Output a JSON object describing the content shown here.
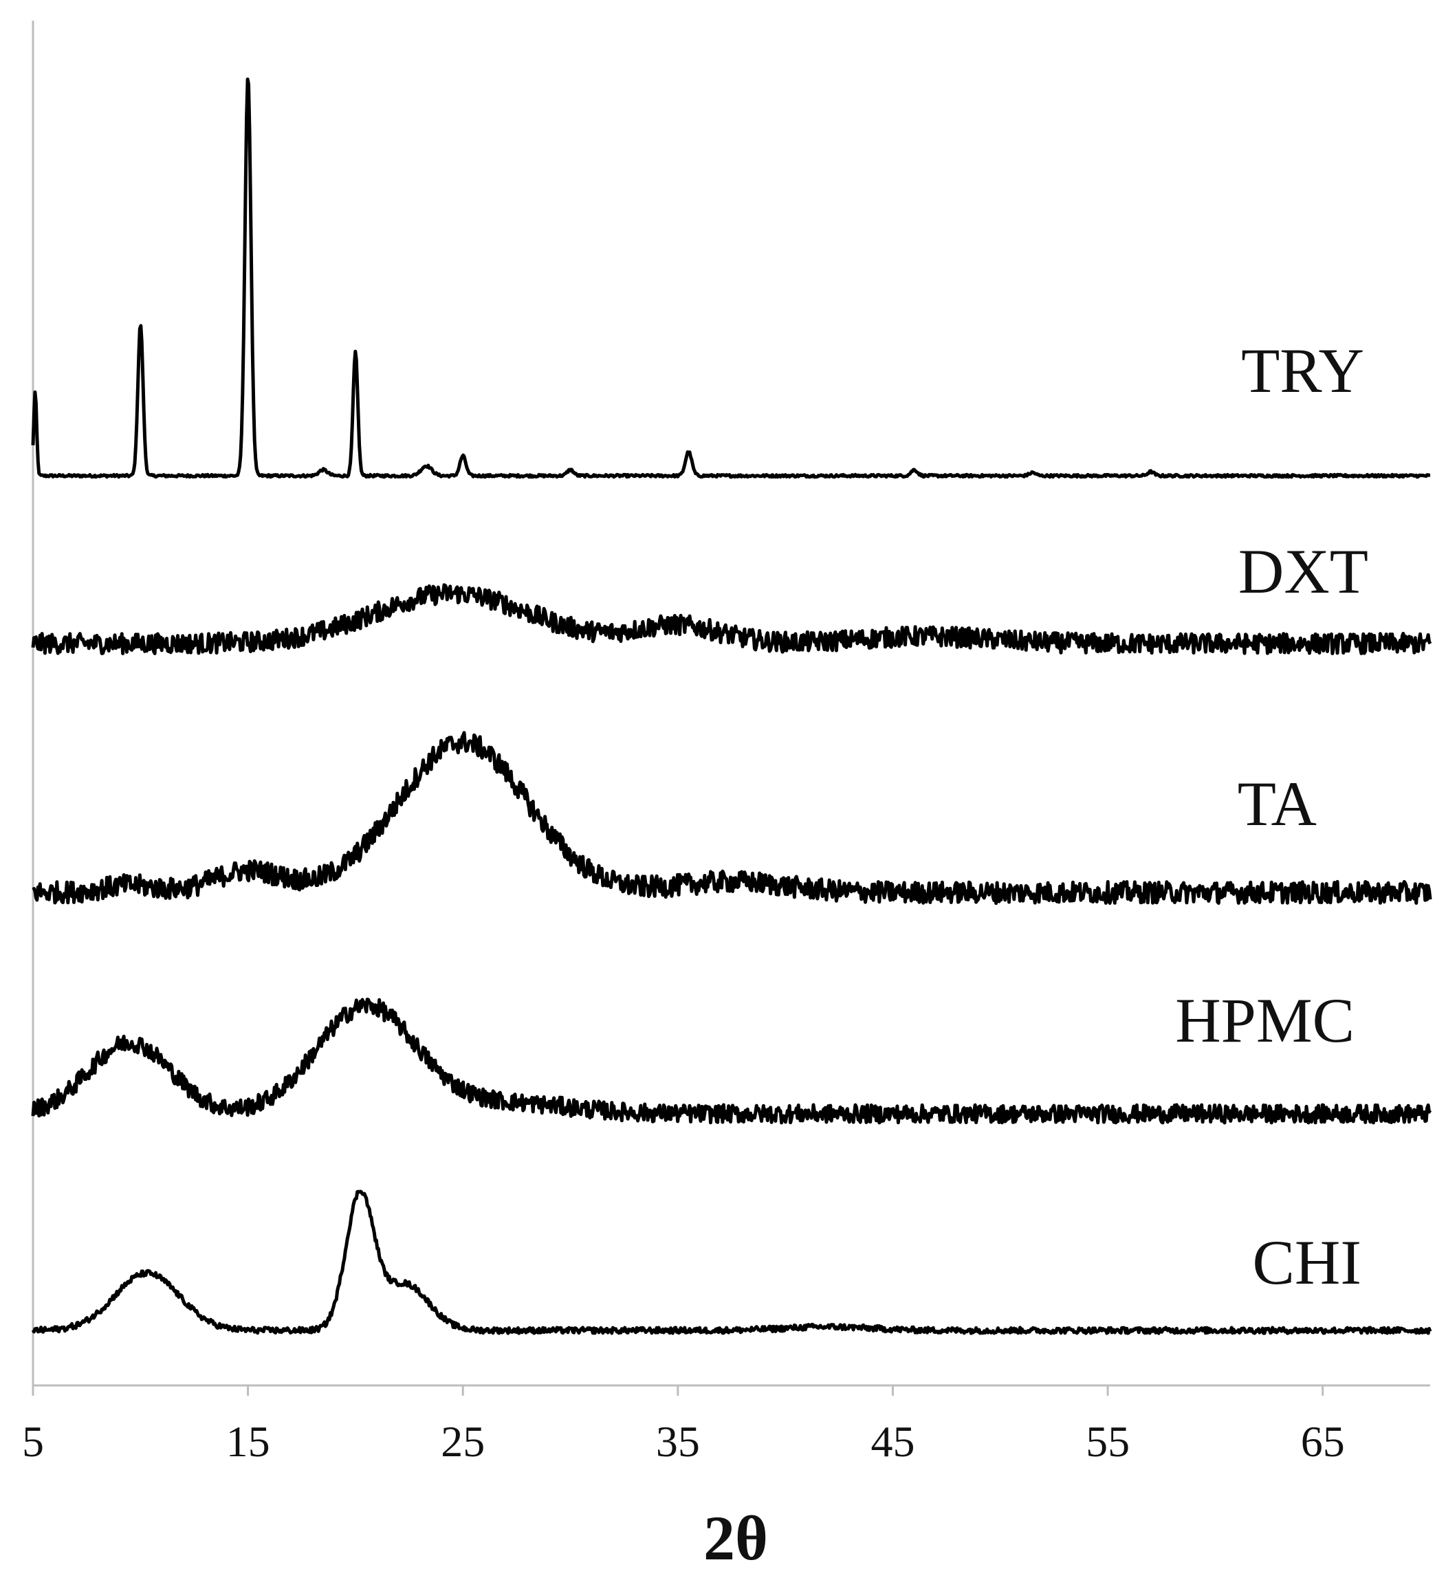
{
  "chart_data": {
    "type": "line",
    "title": "",
    "xlabel": "2θ",
    "ylabel": "",
    "xlim": [
      5,
      70
    ],
    "xticks": [
      5,
      15,
      25,
      35,
      45,
      55,
      65
    ],
    "y_axis_ticks": false,
    "grid": false,
    "layout": "stacked offset traces, labels at right end of each trace",
    "series": [
      {
        "name": "TRY",
        "noise": 0.003,
        "baseline": 0.0,
        "peaks": [
          {
            "x": 5.1,
            "h": 0.21,
            "w": 0.07
          },
          {
            "x": 10.0,
            "h": 0.38,
            "w": 0.12
          },
          {
            "x": 15.0,
            "h": 1.0,
            "w": 0.14
          },
          {
            "x": 20.0,
            "h": 0.31,
            "w": 0.11
          },
          {
            "x": 18.5,
            "h": 0.015,
            "w": 0.2
          },
          {
            "x": 23.3,
            "h": 0.025,
            "w": 0.25
          },
          {
            "x": 25.0,
            "h": 0.05,
            "w": 0.14
          },
          {
            "x": 30.0,
            "h": 0.015,
            "w": 0.15
          },
          {
            "x": 35.5,
            "h": 0.06,
            "w": 0.15
          },
          {
            "x": 46.0,
            "h": 0.015,
            "w": 0.15
          },
          {
            "x": 51.5,
            "h": 0.008,
            "w": 0.15
          },
          {
            "x": 57.0,
            "h": 0.01,
            "w": 0.15
          }
        ]
      },
      {
        "name": "DXT",
        "noise": 0.028,
        "baseline": 0.0,
        "peaks": [
          {
            "x": 24.5,
            "h": 0.14,
            "w": 3.6
          },
          {
            "x": 35.0,
            "h": 0.05,
            "w": 2.0
          },
          {
            "x": 46.5,
            "h": 0.02,
            "w": 3.0
          }
        ]
      },
      {
        "name": "TA",
        "noise": 0.03,
        "baseline": 0.0,
        "peaks": [
          {
            "x": 9.5,
            "h": 0.02,
            "w": 1.2
          },
          {
            "x": 15.0,
            "h": 0.06,
            "w": 1.6
          },
          {
            "x": 25.0,
            "h": 0.42,
            "w": 3.0
          },
          {
            "x": 37.5,
            "h": 0.03,
            "w": 2.5
          }
        ]
      },
      {
        "name": "HPMC",
        "noise": 0.025,
        "baseline": 0.0,
        "peaks": [
          {
            "x": 9.5,
            "h": 0.2,
            "w": 1.9
          },
          {
            "x": 20.5,
            "h": 0.3,
            "w": 2.3
          },
          {
            "x": 27.0,
            "h": 0.03,
            "w": 3.0
          }
        ]
      },
      {
        "name": "CHI",
        "noise": 0.008,
        "baseline": 0.0,
        "peaks": [
          {
            "x": 10.3,
            "h": 0.16,
            "w": 1.5
          },
          {
            "x": 20.2,
            "h": 0.37,
            "w": 0.65
          },
          {
            "x": 22.3,
            "h": 0.13,
            "w": 1.1
          },
          {
            "x": 42.0,
            "h": 0.01,
            "w": 2.0
          }
        ]
      }
    ]
  }
}
